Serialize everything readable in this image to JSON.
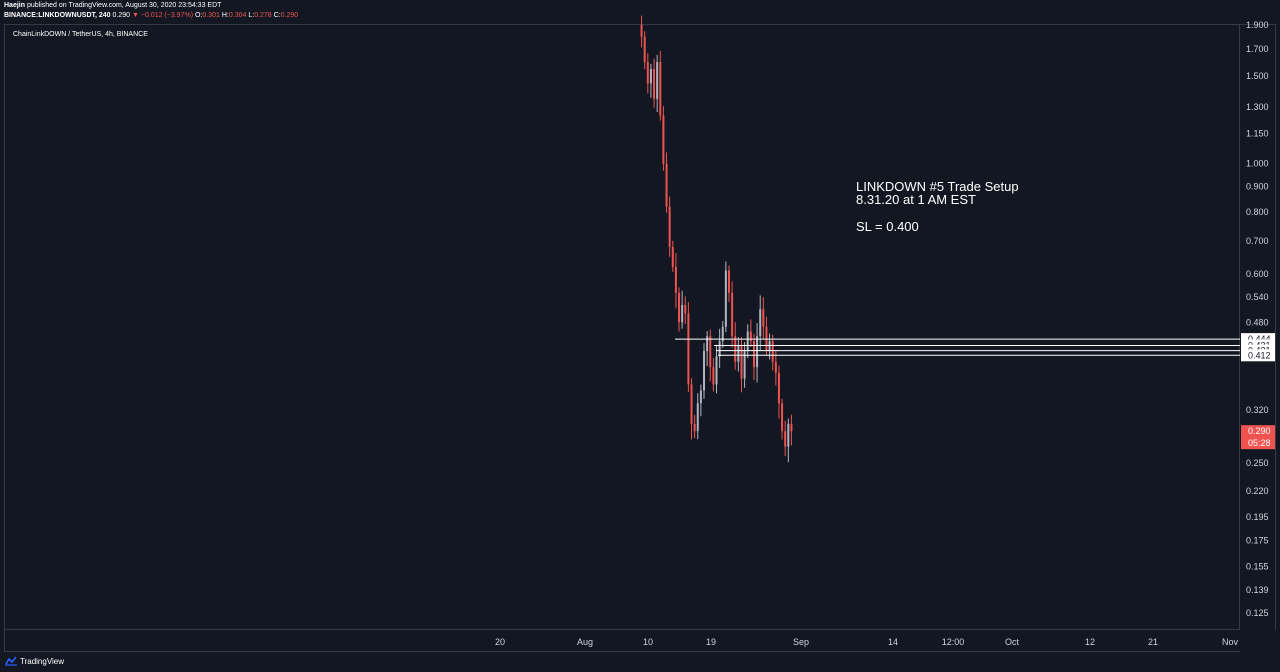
{
  "header": {
    "author": "Haejin",
    "published": "published on TradingView.com, August 30, 2020 23:54:33 EDT",
    "symbol_interval": "BINANCE:LINKDOWNUSDT, 240",
    "last": "0.290",
    "change": "▼ −0.012 (−3.97%)",
    "o_label": "O:",
    "o_value": "0.301",
    "h_label": "H:",
    "h_value": "0.304",
    "l_label": "L:",
    "l_value": "0.278",
    "c_label": "C:",
    "c_value": "0.290"
  },
  "chart_title": "ChainLinkDOWN / TetherUS, 4h, BINANCE",
  "annotation": {
    "line1": "LINKDOWN #5 Trade Setup",
    "line2": "8.31.20 at 1 AM EST",
    "line3": "SL = 0.400"
  },
  "footer": {
    "brand": "TradingView"
  },
  "colors": {
    "background": "#131722",
    "up": "#b2b5be",
    "down": "#ef5350",
    "grid_border": "#363a45",
    "level_line": "#ffffff",
    "last_price_badge": "#ef5350"
  },
  "chart_data": {
    "type": "candlestick",
    "y_scale": "log",
    "y_ticks": [
      1.9,
      1.7,
      1.5,
      1.3,
      1.15,
      1.0,
      0.9,
      0.8,
      0.7,
      0.6,
      0.54,
      0.48,
      0.32,
      0.25,
      0.22,
      0.195,
      0.175,
      0.155,
      0.139,
      0.125
    ],
    "y_tick_labels": [
      "1.900",
      "1.700",
      "1.500",
      "1.300",
      "1.150",
      "1.000",
      "0.900",
      "0.800",
      "0.700",
      "0.600",
      "0.540",
      "0.480",
      "0.320",
      "0.250",
      "0.220",
      "0.195",
      "0.175",
      "0.155",
      "0.139",
      "0.125"
    ],
    "x_ticks": [
      "20",
      "Aug",
      "10",
      "19",
      "Sep",
      "14",
      "12:00",
      "Oct",
      "12",
      "21",
      "Nov"
    ],
    "horizontal_levels": [
      {
        "value": 0.444,
        "label": "0.444"
      },
      {
        "value": 0.431,
        "label": "0.431"
      },
      {
        "value": 0.421,
        "label": "0.421"
      },
      {
        "value": 0.412,
        "label": "0.412"
      }
    ],
    "last_price": {
      "value": 0.29,
      "label": "0.290",
      "countdown": "05:28"
    },
    "price_path": [
      1.9,
      1.8,
      1.6,
      1.45,
      1.55,
      1.35,
      1.6,
      1.25,
      1.0,
      0.82,
      0.68,
      0.62,
      0.55,
      0.48,
      0.52,
      0.5,
      0.36,
      0.3,
      0.29,
      0.33,
      0.35,
      0.42,
      0.45,
      0.39,
      0.36,
      0.41,
      0.44,
      0.47,
      0.61,
      0.55,
      0.45,
      0.4,
      0.43,
      0.37,
      0.42,
      0.46,
      0.44,
      0.39,
      0.45,
      0.51,
      0.47,
      0.42,
      0.44,
      0.4,
      0.38,
      0.33,
      0.29,
      0.27,
      0.3,
      0.29
    ]
  }
}
